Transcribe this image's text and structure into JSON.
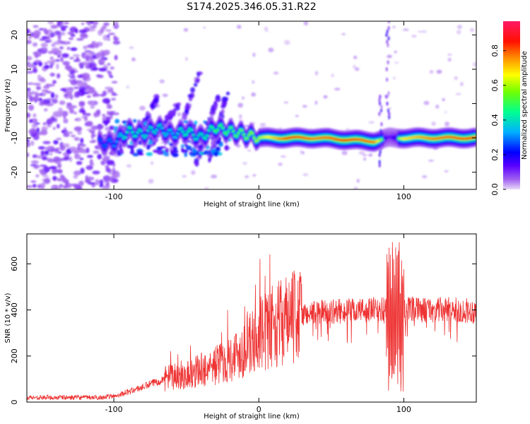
{
  "title": "S174.2025.346.05.31.R22",
  "chart_data": [
    {
      "type": "heatmap",
      "name": "spectrogram",
      "xlabel": "Height of straight line (km)",
      "ylabel": "Frequency (Hz)",
      "xlim": [
        -160,
        150
      ],
      "ylim": [
        -25,
        24
      ],
      "x_ticks": [
        -100,
        0,
        100
      ],
      "y_ticks": [
        20,
        10,
        0,
        -10,
        -20
      ],
      "colorbar": {
        "label": "Normalized spectral amplitude",
        "range": [
          0,
          0.97
        ],
        "ticks": [
          0.0,
          0.2,
          0.4,
          0.6,
          0.8
        ],
        "tick_labels": [
          "0.0",
          "0.2",
          "0.4",
          "0.6",
          "0.8"
        ],
        "colormap": [
          "#d8b4f0",
          "#6a00ff",
          "#0000ff",
          "#00c8ff",
          "#00ff80",
          "#b0ff00",
          "#ffee00",
          "#ff8000",
          "#ff0000",
          "#ff1a66"
        ]
      },
      "ridge": {
        "description_points_x": [
          -150,
          -100,
          -90,
          -80,
          -70,
          -60,
          -50,
          -40,
          -30,
          -20,
          -10,
          0,
          20,
          40,
          60,
          80,
          90,
          100,
          120,
          150
        ],
        "frequency": [
          -11.5,
          -11.5,
          -8,
          -9,
          -7,
          -9,
          -8,
          -10,
          -7,
          -8,
          -9,
          -10,
          -10,
          -10,
          -10.5,
          -11,
          -10,
          -10,
          -10,
          -10
        ],
        "strength": [
          0.15,
          0.3,
          0.45,
          0.4,
          0.4,
          0.35,
          0.45,
          0.4,
          0.5,
          0.5,
          0.55,
          0.6,
          0.85,
          0.8,
          0.85,
          0.8,
          0.3,
          0.7,
          0.8,
          0.85
        ]
      }
    },
    {
      "type": "line",
      "name": "snr",
      "xlabel": "Height of straight line (km)",
      "ylabel": "SNR (10 * v/v)",
      "xlim": [
        -160,
        150
      ],
      "ylim": [
        0,
        730
      ],
      "x_ticks": [
        -100,
        0,
        100
      ],
      "y_ticks": [
        0,
        200,
        400,
        600
      ],
      "line_color": "#ee3333",
      "envelope": {
        "x": [
          -160,
          -110,
          -100,
          -90,
          -80,
          -70,
          -60,
          -50,
          -40,
          -30,
          -20,
          -10,
          0,
          10,
          20,
          30,
          40,
          60,
          80,
          88,
          92,
          95,
          98,
          100,
          110,
          130,
          150
        ],
        "y": [
          20,
          20,
          25,
          45,
          65,
          90,
          110,
          120,
          140,
          160,
          190,
          230,
          280,
          330,
          360,
          380,
          390,
          395,
          400,
          400,
          380,
          350,
          380,
          400,
          400,
          400,
          395
        ]
      },
      "burst": {
        "x_range": [
          88,
          100
        ],
        "max": 730,
        "min": 40
      }
    }
  ]
}
